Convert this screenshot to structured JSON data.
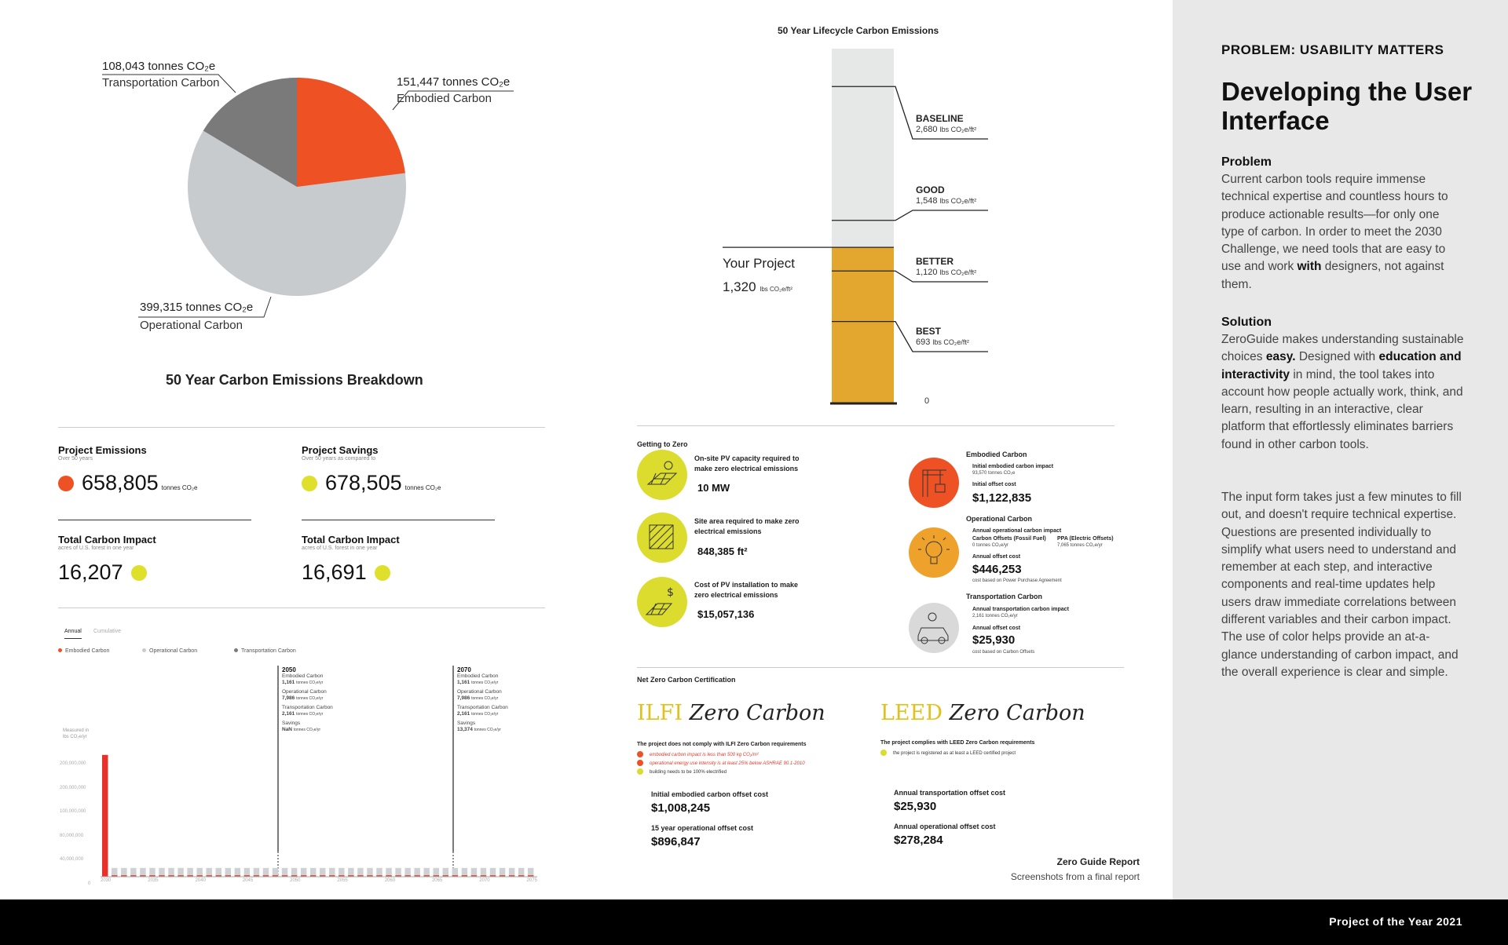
{
  "sidebar": {
    "kicker": "PROBLEM: USABILITY MATTERS",
    "title": "Developing the User Interface",
    "problem_heading": "Problem",
    "problem_text": "Current carbon tools require immense technical expertise and countless hours to produce actionable results—for only one type of carbon. In order to meet the 2030 Challenge, we need tools that are easy to use and work with designers, not against them.",
    "solution_heading": "Solution",
    "solution_text": "ZeroGuide makes understanding sustainable choices easy. Designed with education and interactivity in mind, the tool takes into account how people actually work, think, and learn, resulting in an interactive, clear platform that effortlessly eliminates barriers found in other carbon tools.",
    "input_text": "The input form takes just a few minutes to fill out, and doesn't require technical expertise. Questions are presented individually to simplify what users need to understand and remember at each step, and interactive components and real-time updates help users draw immediate correlations between different variables and their carbon impact. The use of color helps provide an at-a-glance understanding of carbon impact, and the overall experience is clear and simple."
  },
  "footer": {
    "text": "Project of the Year 2021"
  },
  "report_caption": {
    "title": "Zero Guide Report",
    "subtitle": "Screenshots from a final report"
  },
  "pie": {
    "title": "50 Year Carbon Emissions Breakdown",
    "slices": [
      {
        "value": "151,447",
        "unit": "tonnes CO₂e",
        "label": "Embodied Carbon",
        "color": "#ee5124"
      },
      {
        "value": "399,315",
        "unit": "tonnes CO₂e",
        "label": "Operational Carbon",
        "color": "#c7cbce"
      },
      {
        "value": "108,043",
        "unit": "tonnes CO₂e",
        "label": "Transportation Carbon",
        "color": "#7a7a7a"
      }
    ]
  },
  "stats": {
    "emissions": {
      "heading": "Project Emissions",
      "sub": "Over 50 years",
      "value": "658,805",
      "unit": "tonnes CO₂e"
    },
    "savings": {
      "heading": "Project Savings",
      "sub": "Over 50 years as compared to",
      "value": "678,505",
      "unit": "tonnes CO₂e"
    },
    "impact1": {
      "heading": "Total Carbon Impact",
      "sub": "acres of U.S. forest in one year",
      "value": "16,207"
    },
    "impact2": {
      "heading": "Total Carbon Impact",
      "sub": "acres of U.S. forest in one year",
      "value": "16,691"
    }
  },
  "bar_chart": {
    "tabs": [
      "Annual",
      "Cumulative"
    ],
    "legend": [
      {
        "label": "Embodied Carbon",
        "color": "#ee5124"
      },
      {
        "label": "Operational Carbon",
        "color": "#c7cbce"
      },
      {
        "label": "Transportation Carbon",
        "color": "#7a7a7a"
      }
    ],
    "ylabel": "Measured in lbs CO₂e/yr",
    "yticks": [
      "200,000,000",
      "200,000,000",
      "100,000,000",
      "80,000,000",
      "40,000,000",
      "0"
    ],
    "xticks": [
      "2030",
      "2035",
      "2040",
      "2045",
      "2050",
      "2055",
      "2060",
      "2065",
      "2070",
      "2075"
    ],
    "markers": [
      {
        "year": "2050",
        "rows": [
          {
            "name": "Embodied Carbon",
            "value": "1,161",
            "unit": "tonnes CO₂e/yr"
          },
          {
            "name": "Operational Carbon",
            "value": "7,986",
            "unit": "tonnes CO₂e/yr"
          },
          {
            "name": "Transportation Carbon",
            "value": "2,161",
            "unit": "tonnes CO₂e/yr"
          },
          {
            "name": "Savings",
            "value": "NaN",
            "unit": "tonnes CO₂e/yr"
          }
        ]
      },
      {
        "year": "2070",
        "rows": [
          {
            "name": "Embodied Carbon",
            "value": "1,161",
            "unit": "tonnes CO₂e/yr"
          },
          {
            "name": "Operational Carbon",
            "value": "7,986",
            "unit": "tonnes CO₂e/yr"
          },
          {
            "name": "Transportation Carbon",
            "value": "2,161",
            "unit": "tonnes CO₂e/yr"
          },
          {
            "name": "Savings",
            "value": "13,374",
            "unit": "tonnes CO₂e/yr"
          }
        ]
      }
    ],
    "chart_data": {
      "type": "bar",
      "first_year_embodied_fraction": 0.97,
      "bar_count": 46,
      "operational_level_fraction": 0.07,
      "embodied_level_fraction": 0.012
    }
  },
  "lifecycle": {
    "title": "50 Year Lifecycle Carbon Emissions",
    "project_label": "Your Project",
    "project_value": "1,320",
    "project_unit": "lbs CO₂e/ft²",
    "zero": "0",
    "max_value": 3000,
    "project_num": 1320,
    "levels": [
      {
        "name": "BASELINE",
        "value": "2,680",
        "num": 2680,
        "unit": "lbs CO₂e/ft²"
      },
      {
        "name": "GOOD",
        "value": "1,548",
        "num": 1548,
        "unit": "lbs CO₂e/ft²"
      },
      {
        "name": "BETTER",
        "value": "1,120",
        "num": 1120,
        "unit": "lbs CO₂e/ft²"
      },
      {
        "name": "BEST",
        "value": "693",
        "num": 693,
        "unit": "lbs CO₂e/ft²"
      }
    ]
  },
  "getting_to_zero": {
    "heading": "Getting to Zero",
    "items": [
      {
        "label": "On-site PV capacity required to make zero electrical emissions",
        "value": "10 MW"
      },
      {
        "label": "Site area required to make zero electrical emissions",
        "value": "848,385 ft²"
      },
      {
        "label": "Cost of PV installation to make zero electrical emissions",
        "value": "$15,057,136"
      }
    ],
    "embodied": {
      "heading": "Embodied Carbon",
      "impact_label": "Initial embodied carbon impact",
      "impact_value": "93,570 tonnes CO₂e",
      "cost_label": "Initial offset cost",
      "cost": "$1,122,835"
    },
    "operational": {
      "heading": "Operational Carbon",
      "impact_label": "Annual operational carbon impact",
      "col1_label": "Carbon Offsets (Fossil Fuel)",
      "col1_value": "0 tonnes CO₂e/yr",
      "col2_label": "PPA (Electric Offsets)",
      "col2_value": "7,065 tonnes CO₂e/yr",
      "cost_label": "Annual offset cost",
      "cost": "$446,253",
      "note": "cost based on Power Purchase Agreement"
    },
    "transportation": {
      "heading": "Transportation Carbon",
      "impact_label": "Annual transportation carbon impact",
      "impact_value": "2,161 tonnes CO₂e/yr",
      "cost_label": "Annual offset cost",
      "cost": "$25,930",
      "note": "cost based on Carbon Offsets"
    }
  },
  "certification": {
    "heading": "Net Zero Carbon Certification",
    "ilfi": {
      "name_accent": "ILFI",
      "name_rest": "Zero Carbon",
      "status": "The project does not comply with ILFI Zero Carbon requirements",
      "checks": [
        {
          "text": "embodied carbon impact is less than 500 kg CO₂/m²",
          "ok": false
        },
        {
          "text": "operational energy use intensity is at least 25% below ASHRAE 90.1-2010",
          "ok": false
        },
        {
          "text": "building needs to be 100% electrified",
          "ok": true
        }
      ],
      "cost1_label": "Initial embodied carbon offset cost",
      "cost1": "$1,008,245",
      "cost2_label": "15 year operational offset cost",
      "cost2": "$896,847"
    },
    "leed": {
      "name_accent": "LEED",
      "name_rest": "Zero Carbon",
      "status": "The project complies with LEED Zero Carbon requirements",
      "checks": [
        {
          "text": "the project is registered as at least a LEED certified project",
          "ok": true
        }
      ],
      "cost1_label": "Annual transportation offset cost",
      "cost1": "$25,930",
      "cost2_label": "Annual operational offset cost",
      "cost2": "$278,284"
    }
  }
}
